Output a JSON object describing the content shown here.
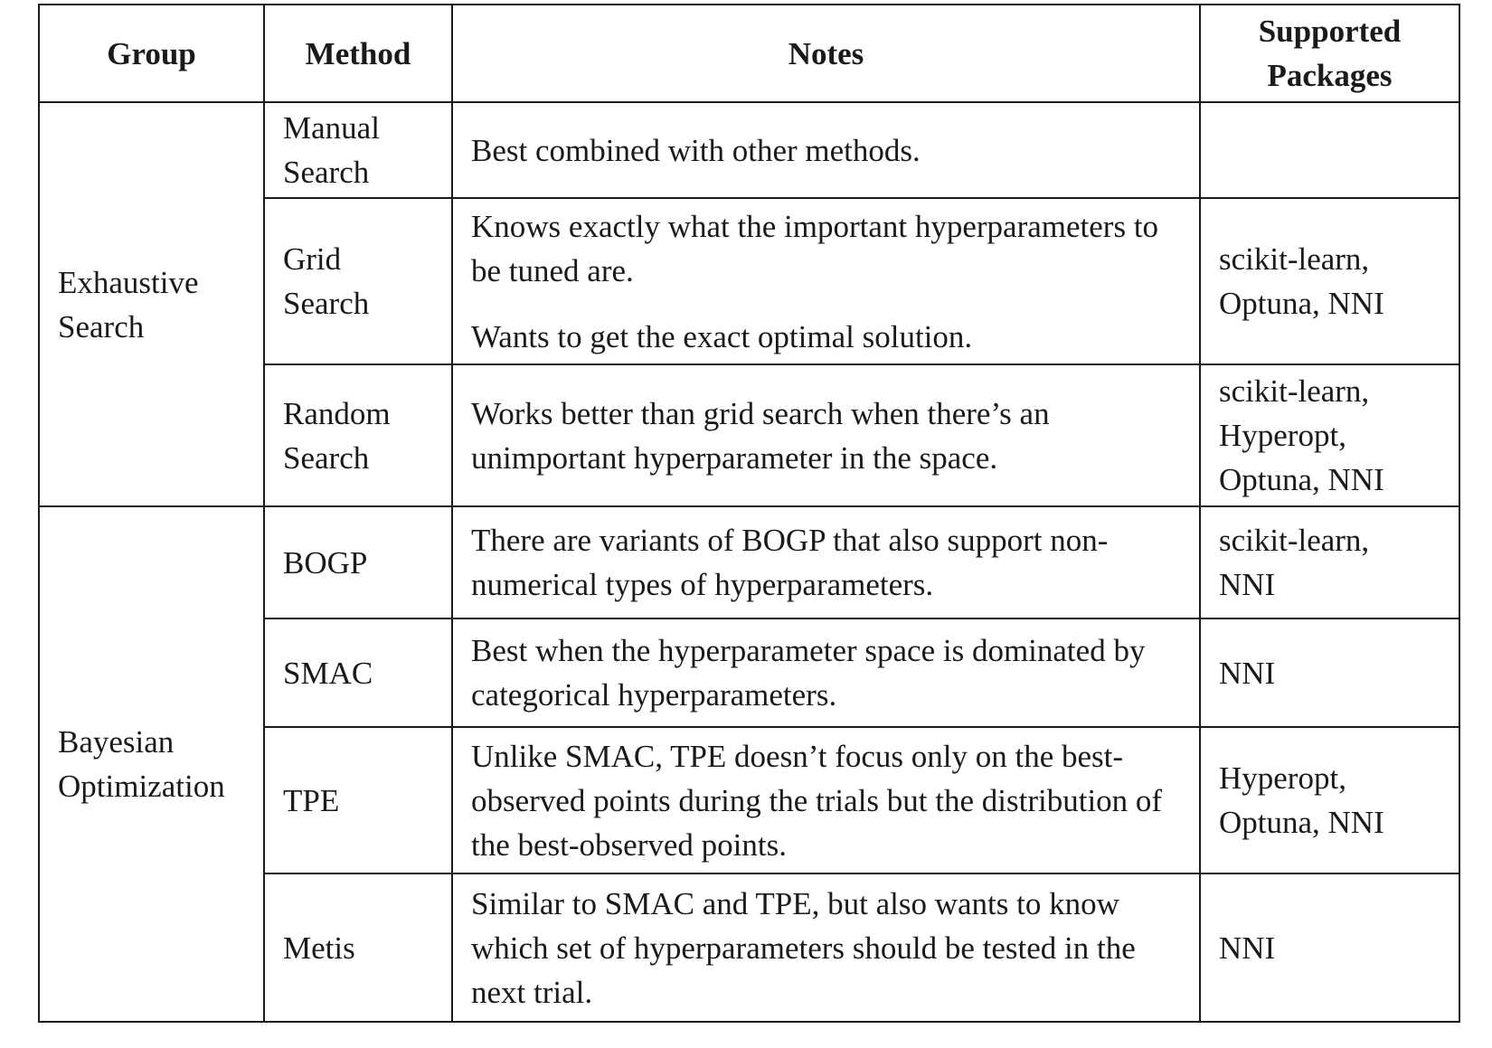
{
  "headers": {
    "group": "Group",
    "method": "Method",
    "notes": "Notes",
    "packages_line1": "Supported",
    "packages_line2": "Packages"
  },
  "groups": [
    {
      "label_line1": "Exhaustive",
      "label_line2": "Search"
    },
    {
      "label_line1": "Bayesian",
      "label_line2": "Optimization"
    }
  ],
  "rows": [
    {
      "method_line1": "Manual",
      "method_line2": "Search",
      "notes": [
        "Best combined with other methods."
      ],
      "packages": []
    },
    {
      "method_line1": "Grid",
      "method_line2": "Search",
      "notes": [
        "Knows exactly what the important hyperparameters to be tuned are.",
        "Wants to get the exact optimal solution."
      ],
      "packages": [
        "scikit-learn,",
        "Optuna, NNI"
      ]
    },
    {
      "method_line1": "Random",
      "method_line2": "Search",
      "notes": [
        "Works better than grid search when there’s an unimportant hyperparameter in the space."
      ],
      "packages": [
        "scikit-learn,",
        "Hyperopt,",
        "Optuna, NNI"
      ]
    },
    {
      "method_line1": "BOGP",
      "notes": [
        "There are variants of BOGP that also support non-numerical types of hyperparameters."
      ],
      "packages": [
        "scikit-learn,",
        "NNI"
      ]
    },
    {
      "method_line1": "SMAC",
      "notes": [
        "Best when the hyperparameter space is dominated by categorical hyperparameters."
      ],
      "packages": [
        "NNI"
      ]
    },
    {
      "method_line1": "TPE",
      "notes": [
        "Unlike SMAC, TPE doesn’t focus only on the best-observed points during the trials but the distribution of the best-observed points."
      ],
      "packages": [
        "Hyperopt,",
        "Optuna, NNI"
      ]
    },
    {
      "method_line1": "Metis",
      "notes": [
        "Similar to SMAC and TPE, but also wants to know which set of hyperparameters should be tested in the next trial."
      ],
      "packages": [
        "NNI"
      ]
    }
  ]
}
